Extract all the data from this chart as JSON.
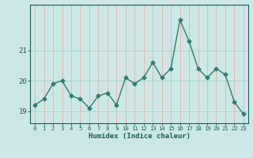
{
  "x": [
    0,
    1,
    2,
    3,
    4,
    5,
    6,
    7,
    8,
    9,
    10,
    11,
    12,
    13,
    14,
    15,
    16,
    17,
    18,
    19,
    20,
    21,
    22,
    23
  ],
  "y": [
    19.2,
    19.4,
    19.9,
    20.0,
    19.5,
    19.4,
    19.1,
    19.5,
    19.6,
    19.2,
    20.1,
    19.9,
    20.1,
    20.6,
    20.1,
    20.4,
    22.0,
    21.3,
    20.4,
    20.1,
    20.4,
    20.2,
    19.3,
    18.9
  ],
  "xlabel": "Humidex (Indice chaleur)",
  "xticks": [
    0,
    1,
    2,
    3,
    4,
    5,
    6,
    7,
    8,
    9,
    10,
    11,
    12,
    13,
    14,
    15,
    16,
    17,
    18,
    19,
    20,
    21,
    22,
    23
  ],
  "yticks": [
    19,
    20,
    21
  ],
  "ylim": [
    18.6,
    22.5
  ],
  "xlim": [
    -0.5,
    23.5
  ],
  "line_color": "#2e7d6e",
  "bg_color": "#cce8e6",
  "vgrid_color": "#e8b4b4",
  "hgrid_color": "#aad4d0",
  "tick_color": "#1a5c52",
  "label_color": "#1a5c52",
  "marker": "D",
  "markersize": 2.5,
  "linewidth": 1.0
}
